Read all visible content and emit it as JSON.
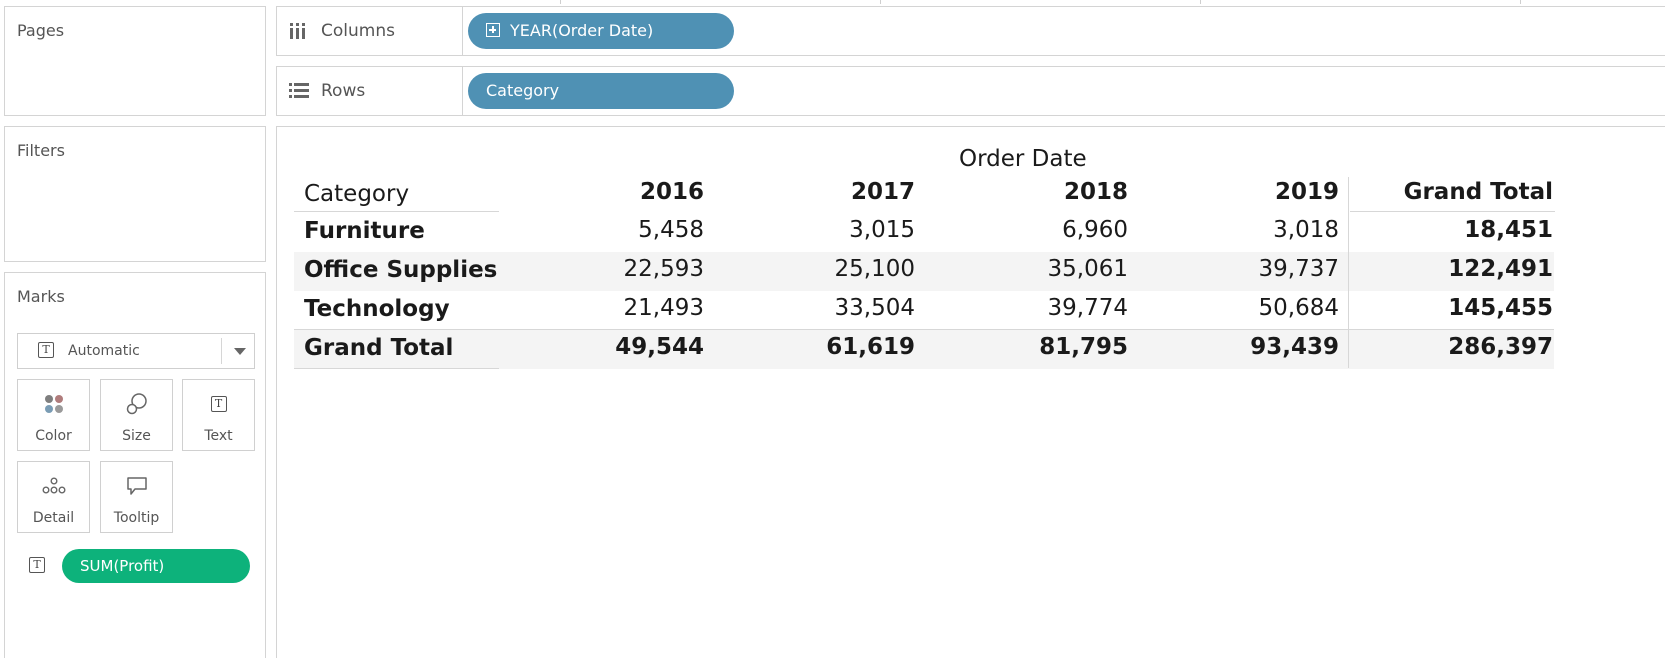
{
  "left_panel": {
    "pages_title": "Pages",
    "filters_title": "Filters",
    "marks": {
      "title": "Marks",
      "mark_type": "Automatic",
      "tiles": [
        {
          "label": "Color",
          "icon": "color-dots-icon"
        },
        {
          "label": "Size",
          "icon": "size-circles-icon"
        },
        {
          "label": "Text",
          "icon": "text-t-icon"
        },
        {
          "label": "Detail",
          "icon": "detail-dots-icon"
        },
        {
          "label": "Tooltip",
          "icon": "speech-bubble-icon"
        }
      ],
      "field_pill": "SUM(Profit)"
    }
  },
  "shelves": {
    "columns": {
      "label": "Columns",
      "icon": "columns-icon",
      "pill": "YEAR(Order Date)"
    },
    "rows": {
      "label": "Rows",
      "icon": "rows-icon",
      "pill": "Category"
    }
  },
  "crosstab": {
    "column_group_header": "Order Date",
    "row_header": "Category",
    "columns": [
      "2016",
      "2017",
      "2018",
      "2019",
      "Grand Total"
    ],
    "rows": [
      {
        "label": "Furniture",
        "values": [
          "5,458",
          "3,015",
          "6,960",
          "3,018",
          "18,451"
        ]
      },
      {
        "label": "Office Supplies",
        "values": [
          "22,593",
          "25,100",
          "35,061",
          "39,737",
          "122,491"
        ]
      },
      {
        "label": "Technology",
        "values": [
          "21,493",
          "33,504",
          "39,774",
          "50,684",
          "145,455"
        ]
      },
      {
        "label": "Grand Total",
        "values": [
          "49,544",
          "61,619",
          "81,795",
          "93,439",
          "286,397"
        ]
      }
    ]
  },
  "colors": {
    "dimension_pill": "#4f91b4",
    "measure_pill": "#0db27b",
    "band": "#f4f4f4",
    "border": "#d4d4d4"
  }
}
